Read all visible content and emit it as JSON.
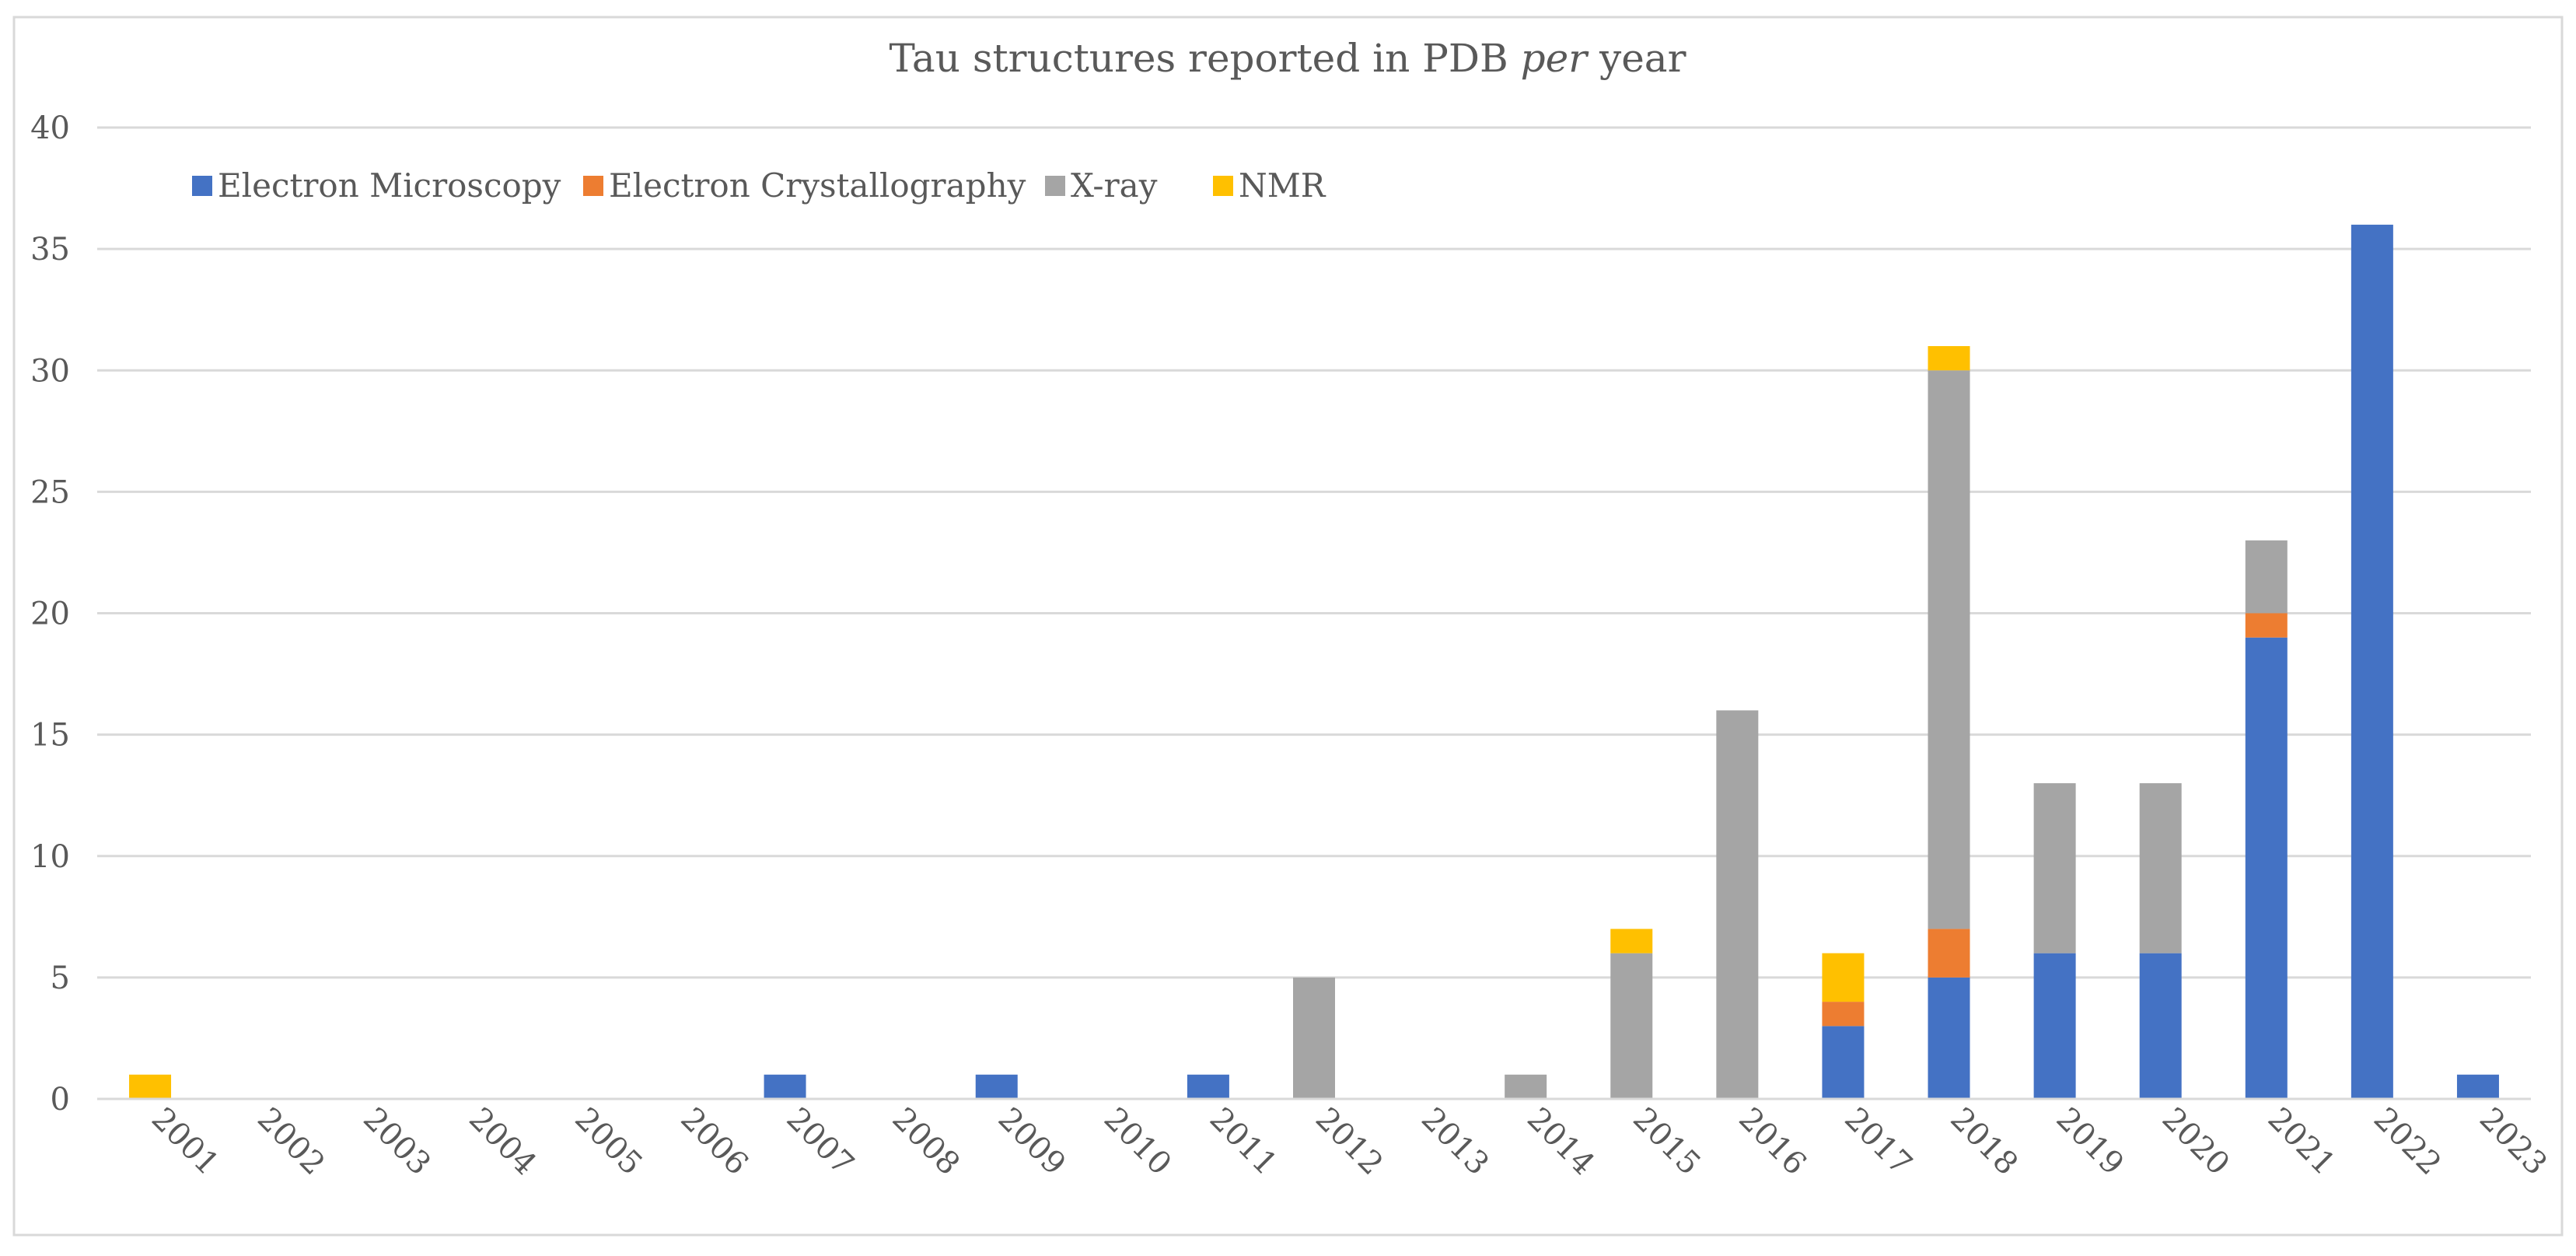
{
  "chart_data": {
    "type": "bar",
    "stacked": true,
    "title": "Tau structures reported in PDB per year",
    "title_parts": {
      "before": "Tau structures reported in PDB ",
      "italic": "per",
      "after": " year"
    },
    "xlabel": "",
    "ylabel": "",
    "ylim": [
      0,
      40
    ],
    "yticks": [
      "0",
      "5",
      "10",
      "15",
      "20",
      "25",
      "30",
      "35",
      "40"
    ],
    "grid": true,
    "legend_position": "top-left",
    "categories": [
      "2001",
      "2002",
      "2003",
      "2004",
      "2005",
      "2006",
      "2007",
      "2008",
      "2009",
      "2010",
      "2011",
      "2012",
      "2013",
      "2014",
      "2015",
      "2016",
      "2017",
      "2018",
      "2019",
      "2020",
      "2021",
      "2022",
      "2023"
    ],
    "series": [
      {
        "name": "Electron Microscopy",
        "color": "#4472C4",
        "values": [
          0,
          0,
          0,
          0,
          0,
          0,
          1,
          0,
          1,
          0,
          1,
          0,
          0,
          0,
          0,
          0,
          3,
          5,
          6,
          6,
          19,
          36,
          1
        ]
      },
      {
        "name": "Electron Crystallography",
        "color": "#ED7D31",
        "values": [
          0,
          0,
          0,
          0,
          0,
          0,
          0,
          0,
          0,
          0,
          0,
          0,
          0,
          0,
          0,
          0,
          1,
          2,
          0,
          0,
          1,
          0,
          0
        ]
      },
      {
        "name": "X-ray",
        "color": "#A5A5A5",
        "values": [
          0,
          0,
          0,
          0,
          0,
          0,
          0,
          0,
          0,
          0,
          0,
          5,
          0,
          1,
          6,
          16,
          0,
          23,
          7,
          7,
          3,
          0,
          0
        ]
      },
      {
        "name": "NMR",
        "color": "#FFC000",
        "values": [
          1,
          0,
          0,
          0,
          0,
          0,
          0,
          0,
          0,
          0,
          0,
          0,
          0,
          0,
          1,
          0,
          2,
          1,
          0,
          0,
          0,
          0,
          0
        ]
      }
    ]
  }
}
